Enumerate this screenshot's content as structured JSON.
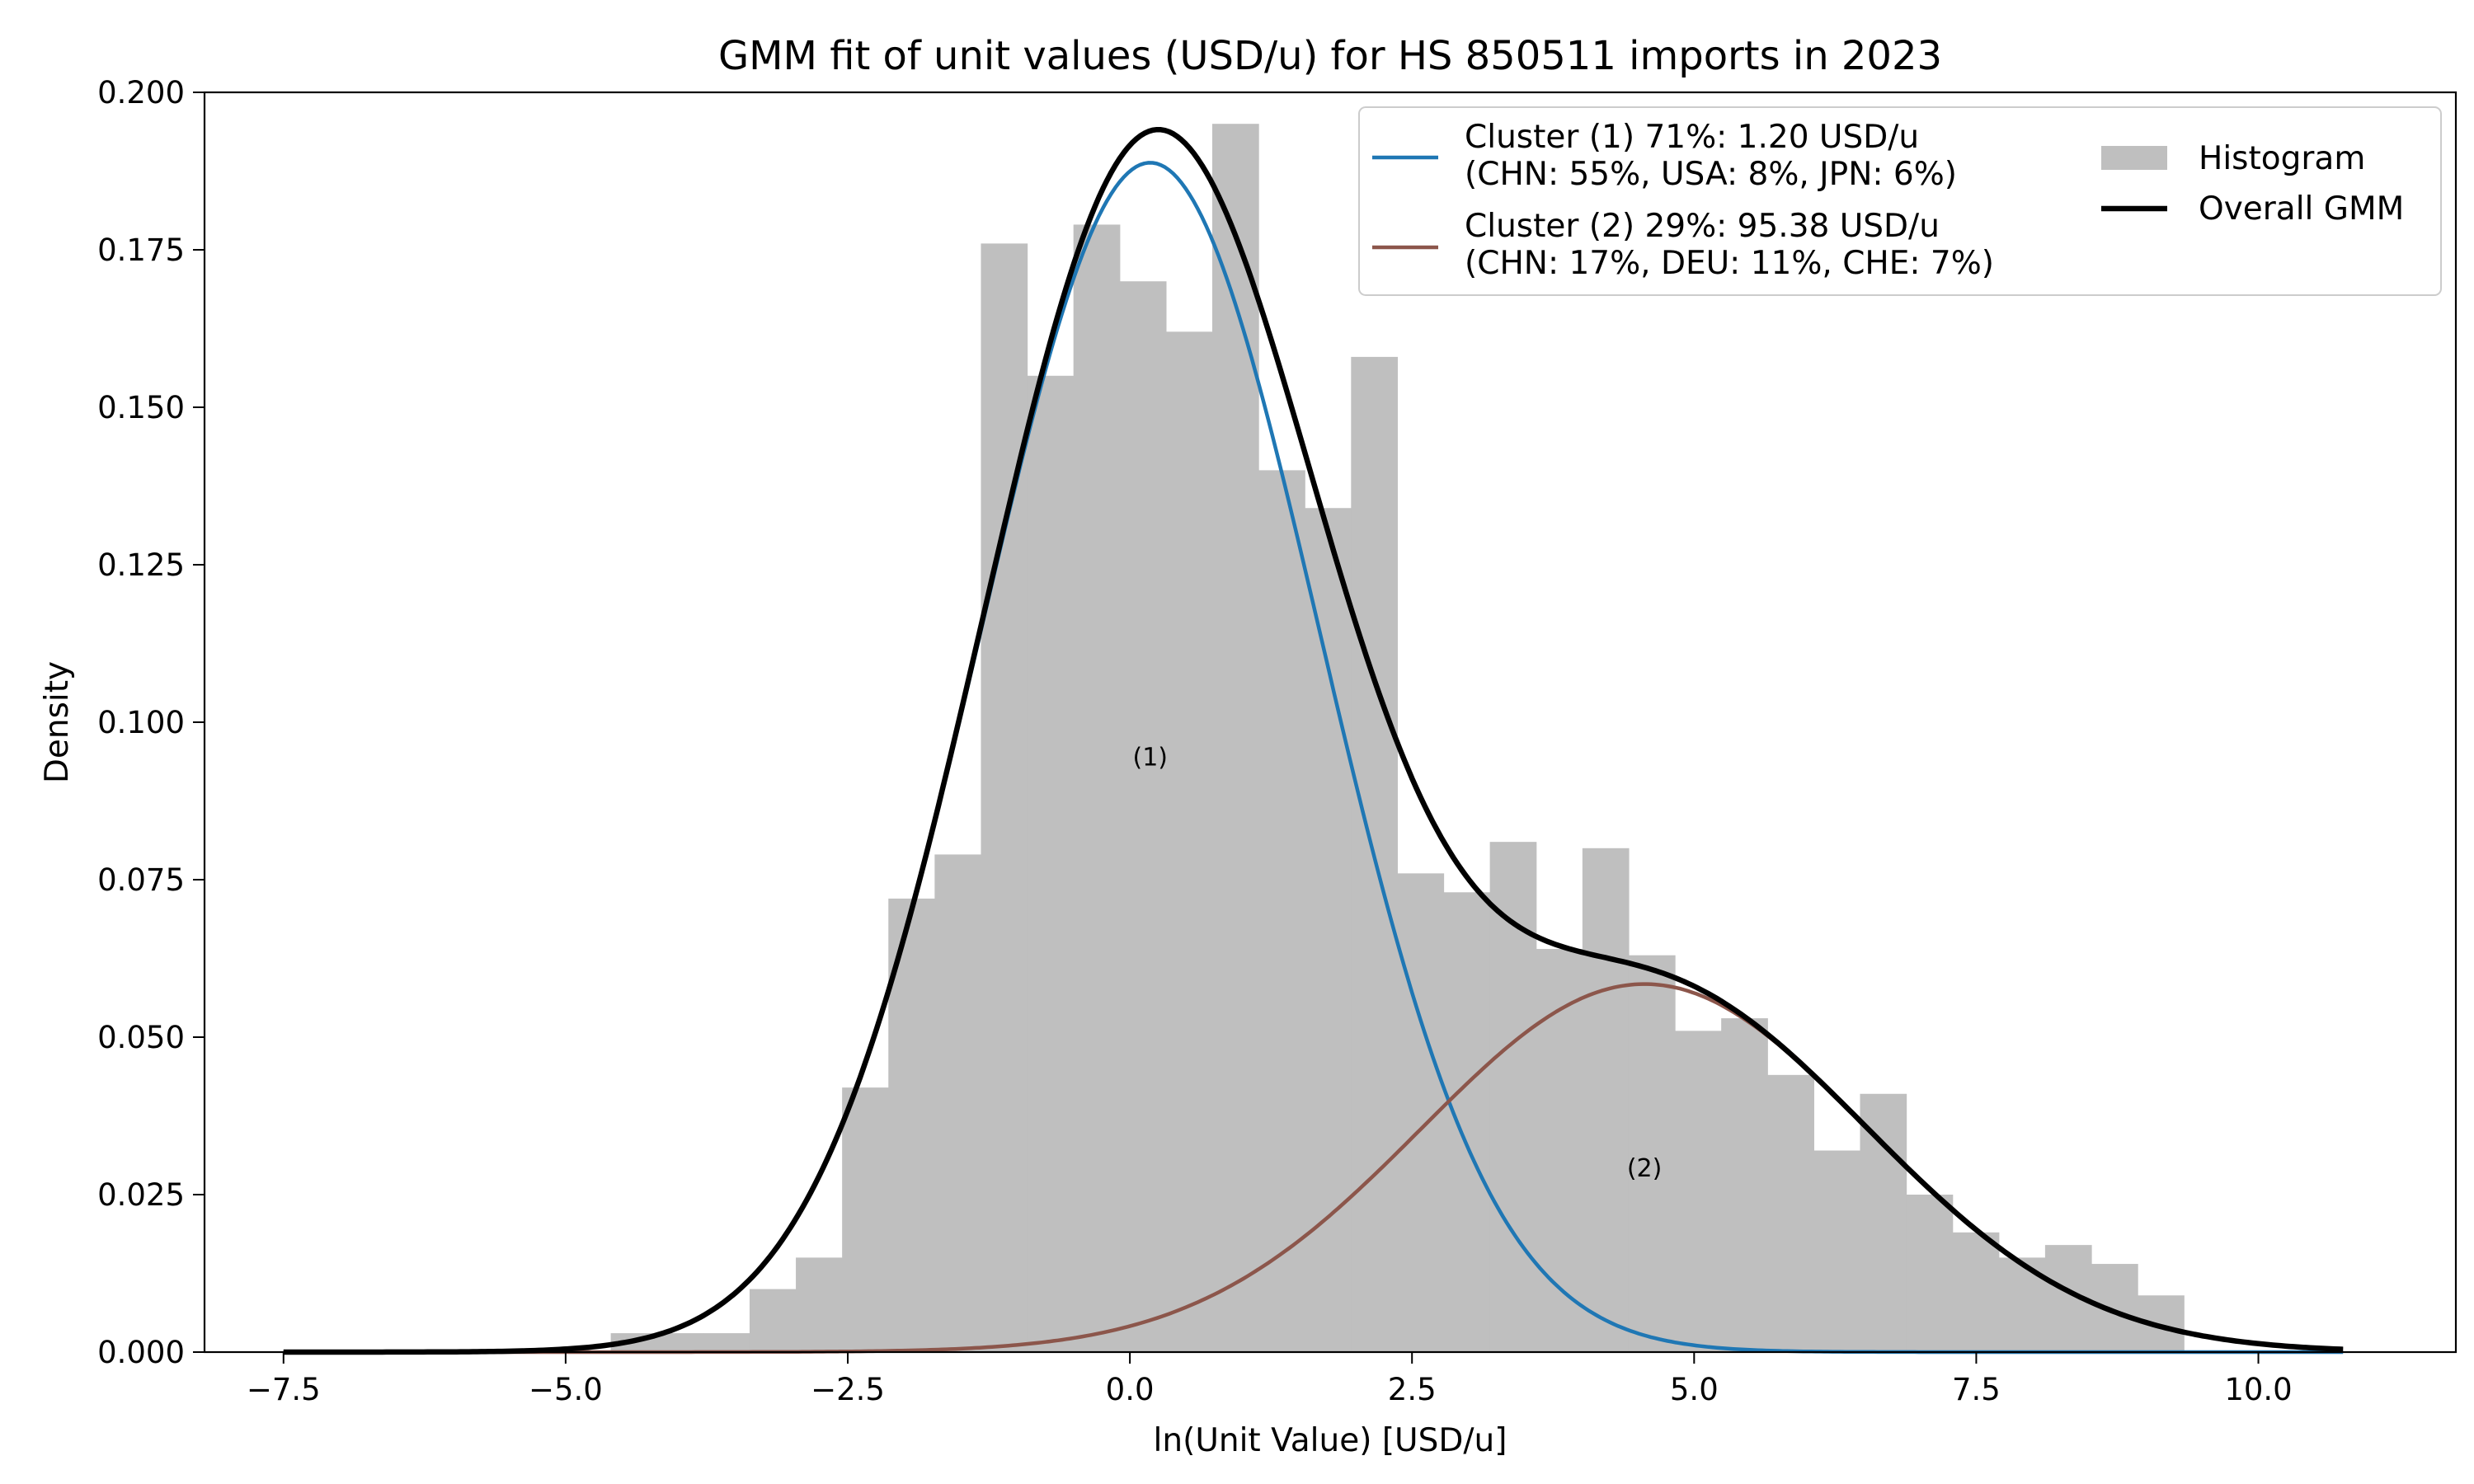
{
  "chart_data": {
    "type": "bar",
    "title": "GMM fit of unit values (USD/u) for HS 850511 imports in 2023",
    "xlabel": "ln(Unit Value) [USD/u]",
    "ylabel": "Density",
    "xlim": [
      -8.2,
      11.75
    ],
    "ylim": [
      0,
      0.2
    ],
    "grid": false,
    "legend_position": "top-right",
    "x_ticks": [
      -7.5,
      -5.0,
      -2.5,
      0.0,
      2.5,
      5.0,
      7.5,
      10.0
    ],
    "x_tick_labels": [
      "−7.5",
      "−5.0",
      "−2.5",
      "0.0",
      "2.5",
      "5.0",
      "7.5",
      "10.0"
    ],
    "y_ticks": [
      0,
      0.025,
      0.05,
      0.075,
      0.1,
      0.125,
      0.15,
      0.175,
      0.2
    ],
    "y_tick_labels": [
      "0.000",
      "0.025",
      "0.050",
      "0.075",
      "0.100",
      "0.125",
      "0.150",
      "0.175",
      "0.200"
    ],
    "histogram": {
      "name": "Histogram",
      "color": "#bfbfbf",
      "bin_start": -4.6,
      "bin_width": 0.41,
      "values": [
        0.003,
        0.003,
        0.003,
        0.01,
        0.015,
        0.042,
        0.072,
        0.079,
        0.176,
        0.155,
        0.179,
        0.17,
        0.162,
        0.195,
        0.14,
        0.134,
        0.158,
        0.076,
        0.073,
        0.081,
        0.064,
        0.08,
        0.063,
        0.051,
        0.053,
        0.044,
        0.032,
        0.041,
        0.025,
        0.019,
        0.015,
        0.017,
        0.014,
        0.009
      ]
    },
    "components": [
      {
        "name": "Cluster (1) 71%: 1.20 USD/u",
        "detail": "(CHN: 55%, USA: 8%, JPN: 6%)",
        "weight": 0.71,
        "mean": 0.18,
        "std": 1.5,
        "color": "#1f77b4",
        "annotation": "(1)"
      },
      {
        "name": "Cluster (2) 29%: 95.38 USD/u",
        "detail": "(CHN: 17%, DEU: 11%, CHE: 7%)",
        "weight": 0.29,
        "mean": 4.56,
        "std": 1.98,
        "color": "#8c564b",
        "annotation": "(2)"
      }
    ],
    "overall": {
      "name": "Overall GMM",
      "color": "#000000",
      "x_range": [
        -7.5,
        10.75
      ]
    }
  }
}
